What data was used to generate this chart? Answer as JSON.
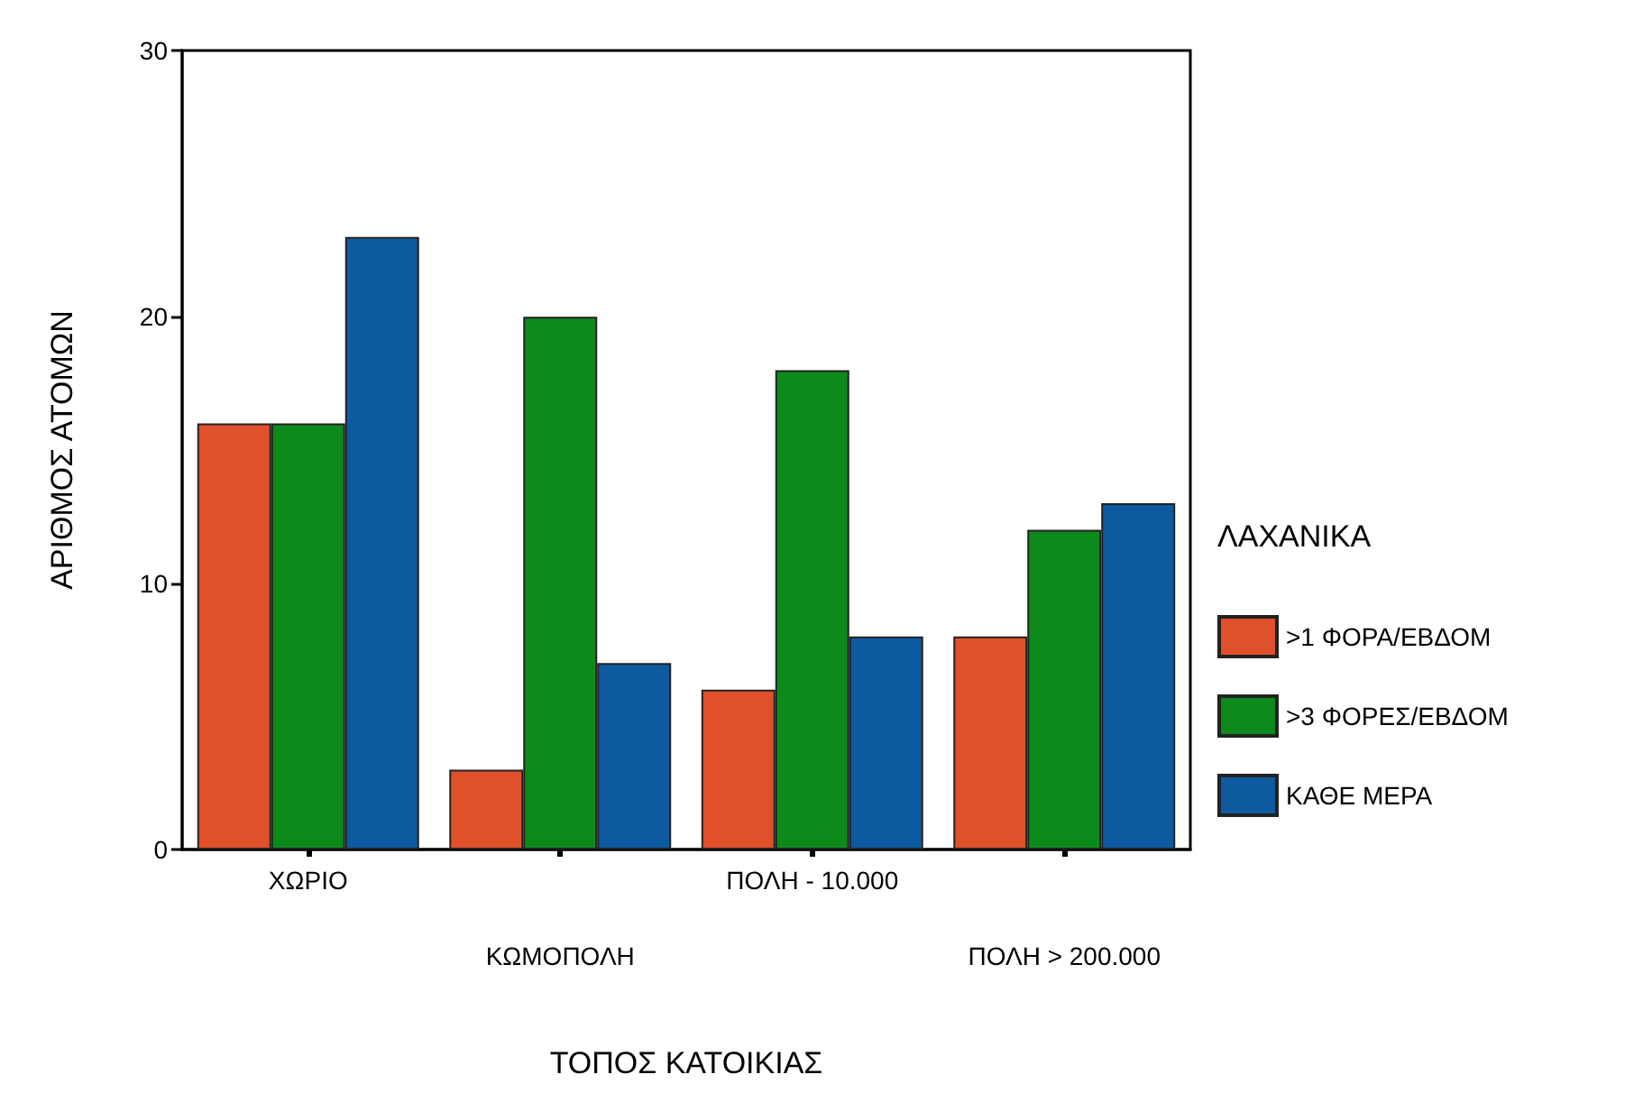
{
  "chart_data": {
    "type": "bar",
    "xlabel": "ΤΟΠΟΣ ΚΑΤΟΙΚΙΑΣ",
    "ylabel": "ΑΡΙΘΜΟΣ ΑΤΟΜΩΝ",
    "legend_title": "ΛΑΧΑΝΙΚΑ",
    "categories": [
      "ΧΩΡΙΟ",
      "ΚΩΜΟΠΟΛΗ",
      "ΠΟΛΗ - 10.000",
      "ΠΟΛΗ > 200.000"
    ],
    "series": [
      {
        "name": ">1 ΦΟΡΑ/ΕΒΔΟΜ",
        "color": "#e0502a",
        "values": [
          16,
          3,
          6,
          8
        ]
      },
      {
        "name": ">3 ΦΟΡΕΣ/ΕΒΔΟΜ",
        "color": "#0d8a1c",
        "values": [
          16,
          20,
          18,
          12
        ]
      },
      {
        "name": "ΚΑΘΕ ΜΕΡΑ",
        "color": "#0d5aa0",
        "values": [
          23,
          7,
          8,
          13
        ]
      }
    ],
    "ylim": [
      0,
      30
    ],
    "yticks": [
      0,
      10,
      20,
      30
    ],
    "grid": false,
    "legend": "right"
  }
}
